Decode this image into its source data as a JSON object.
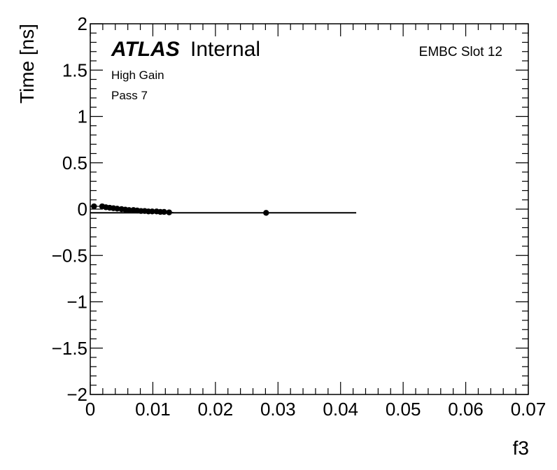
{
  "chart_data": {
    "type": "scatter",
    "xlabel": "f3",
    "ylabel": "Time [ns]",
    "xlim": [
      0,
      0.07
    ],
    "ylim": [
      -2,
      2
    ],
    "x_ticks": [
      "0",
      "0.01",
      "0.02",
      "0.03",
      "0.04",
      "0.05",
      "0.06",
      "0.07"
    ],
    "y_ticks": [
      "2",
      "1.5",
      "1",
      "0.5",
      "0",
      "−0.5",
      "−1",
      "−1.5",
      "−2"
    ],
    "annotations": {
      "atlas": "ATLAS",
      "internal": "Internal",
      "gain": "High Gain",
      "pass": "Pass 7",
      "region": "EMBC Slot 12"
    },
    "points": [
      {
        "x": 0.0006,
        "y": 0.03
      },
      {
        "x": 0.0019,
        "y": 0.03
      },
      {
        "x": 0.0025,
        "y": 0.02
      },
      {
        "x": 0.0031,
        "y": 0.015
      },
      {
        "x": 0.0037,
        "y": 0.01
      },
      {
        "x": 0.0043,
        "y": 0.005
      },
      {
        "x": 0.005,
        "y": 0.0
      },
      {
        "x": 0.0056,
        "y": -0.005
      },
      {
        "x": 0.0062,
        "y": -0.01
      },
      {
        "x": 0.0069,
        "y": -0.01
      },
      {
        "x": 0.0075,
        "y": -0.015
      },
      {
        "x": 0.0081,
        "y": -0.02
      },
      {
        "x": 0.0087,
        "y": -0.02
      },
      {
        "x": 0.0093,
        "y": -0.025
      },
      {
        "x": 0.0099,
        "y": -0.025
      },
      {
        "x": 0.0106,
        "y": -0.025
      },
      {
        "x": 0.0112,
        "y": -0.03
      },
      {
        "x": 0.0118,
        "y": -0.03
      },
      {
        "x": 0.0126,
        "y": -0.035
      },
      {
        "x": 0.0281,
        "y": -0.04
      }
    ],
    "fit_line": {
      "x": [
        0.0,
        0.0425
      ],
      "y": [
        -0.04,
        -0.04
      ]
    },
    "grid": false,
    "legend": "none"
  }
}
